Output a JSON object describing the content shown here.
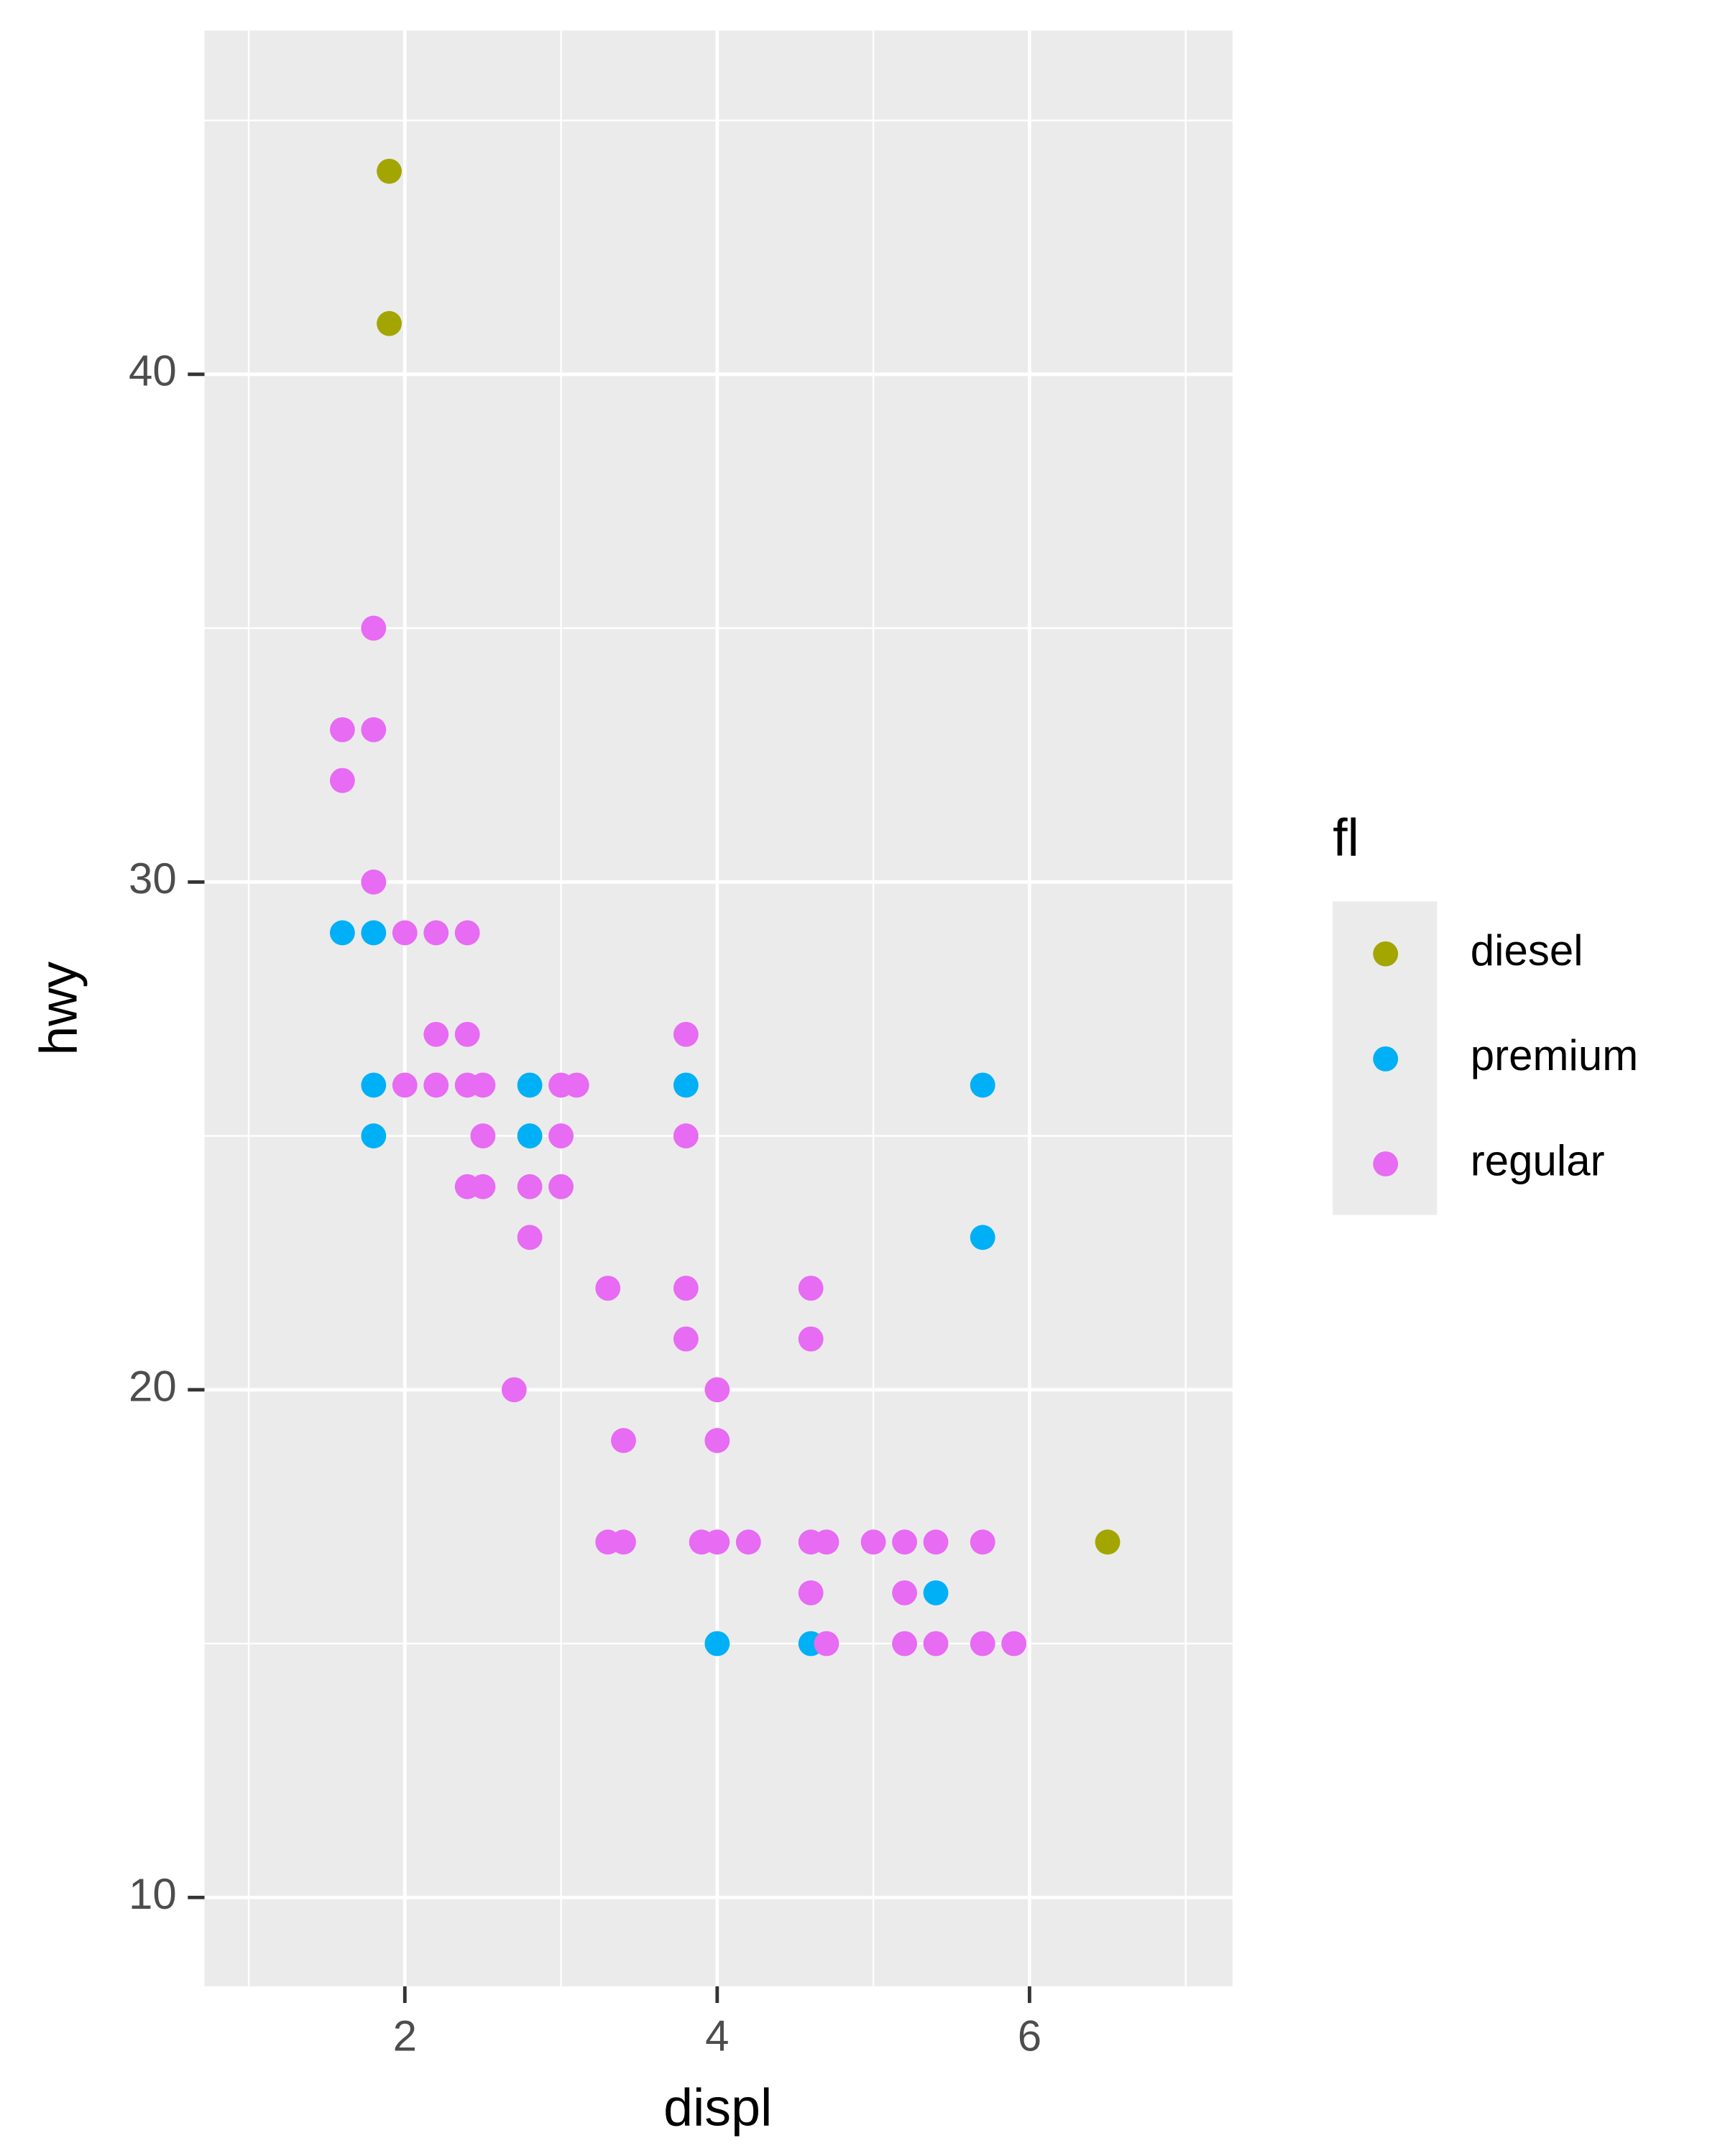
{
  "chart_data": {
    "type": "scatter",
    "xlabel": "displ",
    "ylabel": "hwy",
    "legend_title": "fl",
    "legend": "right",
    "grid": true,
    "panel_color": "#ebebeb",
    "xlim": [
      0.717,
      7.3
    ],
    "ylim": [
      8.25,
      46.77
    ],
    "xticks": [
      2,
      4,
      6
    ],
    "yticks": [
      10,
      20,
      30,
      40
    ],
    "series": [
      {
        "name": "diesel",
        "color": "#a3a500",
        "x": [
          1.9,
          1.9,
          6.5
        ],
        "values": [
          44,
          41,
          17
        ]
      },
      {
        "name": "premium",
        "color": "#00b0f6",
        "x": [
          1.6,
          1.8,
          1.8,
          1.8,
          2.8,
          2.8,
          3.8,
          5.7,
          5.7,
          4.0,
          4.6,
          5.4
        ],
        "values": [
          29,
          29,
          26,
          25,
          26,
          25,
          26,
          26,
          23,
          15,
          15,
          16
        ]
      },
      {
        "name": "regular",
        "color": "#e76bf3",
        "x": [
          1.8,
          1.6,
          1.8,
          1.6,
          1.8,
          2.0,
          2.2,
          2.4,
          2.2,
          2.4,
          2.0,
          2.2,
          2.4,
          2.5,
          3.0,
          3.1,
          2.5,
          3.0,
          2.4,
          2.5,
          2.8,
          3.0,
          2.8,
          3.8,
          3.8,
          3.3,
          3.8,
          4.6,
          3.8,
          4.6,
          2.7,
          4.0,
          3.4,
          4.0,
          3.3,
          3.4,
          3.9,
          4.0,
          4.2,
          4.6,
          4.7,
          5.0,
          5.2,
          5.4,
          5.7,
          4.6,
          5.2,
          4.7,
          5.2,
          5.4,
          5.7,
          5.9
        ],
        "values": [
          35,
          33,
          33,
          32,
          30,
          29,
          29,
          29,
          27,
          27,
          26,
          26,
          26,
          26,
          26,
          26,
          25,
          25,
          24,
          24,
          24,
          24,
          23,
          27,
          25,
          22,
          22,
          22,
          21,
          21,
          20,
          20,
          19,
          19,
          17,
          17,
          17,
          17,
          17,
          17,
          17,
          17,
          17,
          17,
          17,
          16,
          16,
          15,
          15,
          15,
          15,
          15
        ]
      }
    ]
  }
}
